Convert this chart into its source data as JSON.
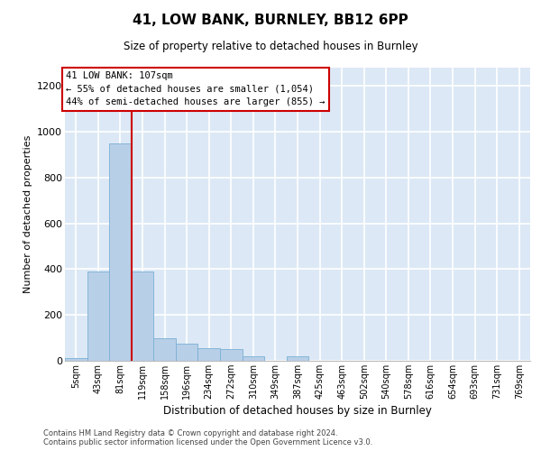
{
  "title": "41, LOW BANK, BURNLEY, BB12 6PP",
  "subtitle": "Size of property relative to detached houses in Burnley",
  "xlabel": "Distribution of detached houses by size in Burnley",
  "ylabel": "Number of detached properties",
  "categories": [
    "5sqm",
    "43sqm",
    "81sqm",
    "119sqm",
    "158sqm",
    "196sqm",
    "234sqm",
    "272sqm",
    "310sqm",
    "349sqm",
    "387sqm",
    "425sqm",
    "463sqm",
    "502sqm",
    "540sqm",
    "578sqm",
    "616sqm",
    "654sqm",
    "693sqm",
    "731sqm",
    "769sqm"
  ],
  "values": [
    10,
    390,
    950,
    390,
    100,
    75,
    55,
    50,
    18,
    0,
    18,
    0,
    0,
    0,
    0,
    0,
    0,
    0,
    0,
    0,
    0
  ],
  "bar_color": "#b8cfe8",
  "bar_edge_color": "#7aafd4",
  "vline_color": "#cc0000",
  "annotation_text": "41 LOW BANK: 107sqm\n← 55% of detached houses are smaller (1,054)\n44% of semi-detached houses are larger (855) →",
  "annotation_box_facecolor": "#ffffff",
  "annotation_box_edgecolor": "#cc0000",
  "ylim": [
    0,
    1280
  ],
  "yticks": [
    0,
    200,
    400,
    600,
    800,
    1000,
    1200
  ],
  "background_color": "#dce8f5",
  "grid_color": "#ffffff",
  "footer_line1": "Contains HM Land Registry data © Crown copyright and database right 2024.",
  "footer_line2": "Contains public sector information licensed under the Open Government Licence v3.0."
}
